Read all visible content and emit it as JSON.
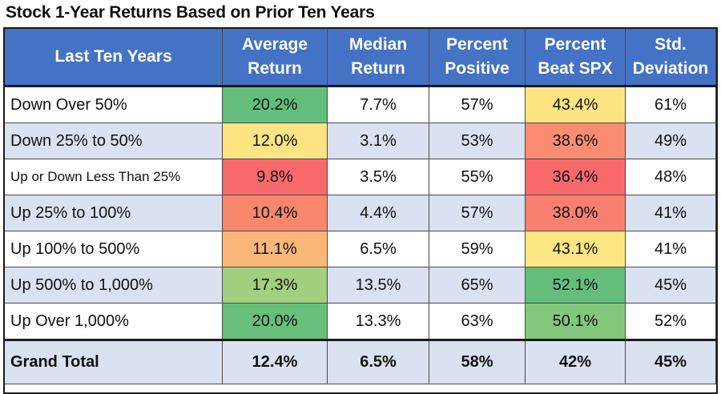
{
  "title": "Stock 1-Year Returns Based on Prior Ten Years",
  "chart_data": {
    "type": "table",
    "title": "Stock 1-Year Returns Based on Prior Ten Years",
    "columns": [
      {
        "line1": "Last Ten Years",
        "line2": ""
      },
      {
        "line1": "Average",
        "line2": "Return"
      },
      {
        "line1": "Median",
        "line2": "Return"
      },
      {
        "line1": "Percent",
        "line2": "Positive"
      },
      {
        "line1": "Percent",
        "line2": "Beat SPX"
      },
      {
        "line1": "Std.",
        "line2": "Deviation"
      }
    ],
    "rows": [
      {
        "label": "Down Over 50%",
        "cells": [
          "20.2%",
          "7.7%",
          "57%",
          "43.4%",
          "61%"
        ],
        "avg_color": "#63be7b",
        "beat_color": "#fee483"
      },
      {
        "label": "Down 25% to 50%",
        "cells": [
          "12.0%",
          "3.1%",
          "53%",
          "38.6%",
          "49%"
        ],
        "avg_color": "#fee483",
        "beat_color": "#fa8c72"
      },
      {
        "label": "Up or Down Less Than 25%",
        "cells": [
          "9.8%",
          "3.5%",
          "55%",
          "36.4%",
          "48%"
        ],
        "avg_color": "#f8696b",
        "beat_color": "#f8696b"
      },
      {
        "label": "Up 25% to 100%",
        "cells": [
          "10.4%",
          "4.4%",
          "57%",
          "38.0%",
          "41%"
        ],
        "avg_color": "#f9876e",
        "beat_color": "#f9806f"
      },
      {
        "label": "Up 100% to 500%",
        "cells": [
          "11.1%",
          "6.5%",
          "59%",
          "43.1%",
          "41%"
        ],
        "avg_color": "#fbb77a",
        "beat_color": "#fee783"
      },
      {
        "label": "Up 500% to 1,000%",
        "cells": [
          "17.3%",
          "13.5%",
          "65%",
          "52.1%",
          "45%"
        ],
        "avg_color": "#a2d07f",
        "beat_color": "#63be7b"
      },
      {
        "label": "Up Over 1,000%",
        "cells": [
          "20.0%",
          "13.3%",
          "63%",
          "50.1%",
          "52%"
        ],
        "avg_color": "#67bf7b",
        "beat_color": "#83c77c"
      }
    ],
    "total": {
      "label": "Grand Total",
      "cells": [
        "12.4%",
        "6.5%",
        "58%",
        "42%",
        "45%"
      ]
    }
  }
}
